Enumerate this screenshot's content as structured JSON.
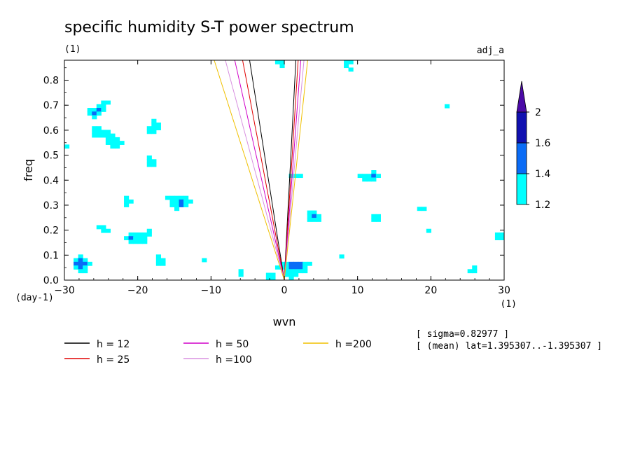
{
  "chart_data": {
    "type": "contour",
    "title": "specific humidity S-T power spectrum",
    "subtitle_left": "(1)",
    "subtitle_right": "adj_a",
    "xlabel": "wvn",
    "ylabel": "freq",
    "x_unit": "(1)",
    "y_unit": "(day-1)",
    "xlim": [
      -30,
      30
    ],
    "ylim": [
      0,
      0.88
    ],
    "xticks": [
      -30,
      -20,
      -10,
      0,
      10,
      20,
      30
    ],
    "yticks": [
      0.0,
      0.1,
      0.2,
      0.3,
      0.4,
      0.5,
      0.6,
      0.7,
      0.8
    ],
    "colorbar": {
      "levels": [
        1.2,
        1.4,
        1.6,
        2
      ],
      "colors": [
        "#00ffff",
        "#0a6cf6",
        "#1010b0",
        "#4b0aa6"
      ]
    },
    "dispersion_curves": [
      {
        "label": "h = 12",
        "h": 12,
        "color": "#000000"
      },
      {
        "label": "h = 25",
        "h": 25,
        "color": "#e00000"
      },
      {
        "label": "h = 50",
        "h": 50,
        "color": "#d000c8"
      },
      {
        "label": "h =100",
        "h": 100,
        "color": "#d890e0"
      },
      {
        "label": "h =200",
        "h": 200,
        "color": "#f0c000"
      }
    ],
    "annotations": [
      "[ sigma=0.82977 ]",
      "[ (mean) lat=1.395307..-1.395307 ]"
    ]
  }
}
